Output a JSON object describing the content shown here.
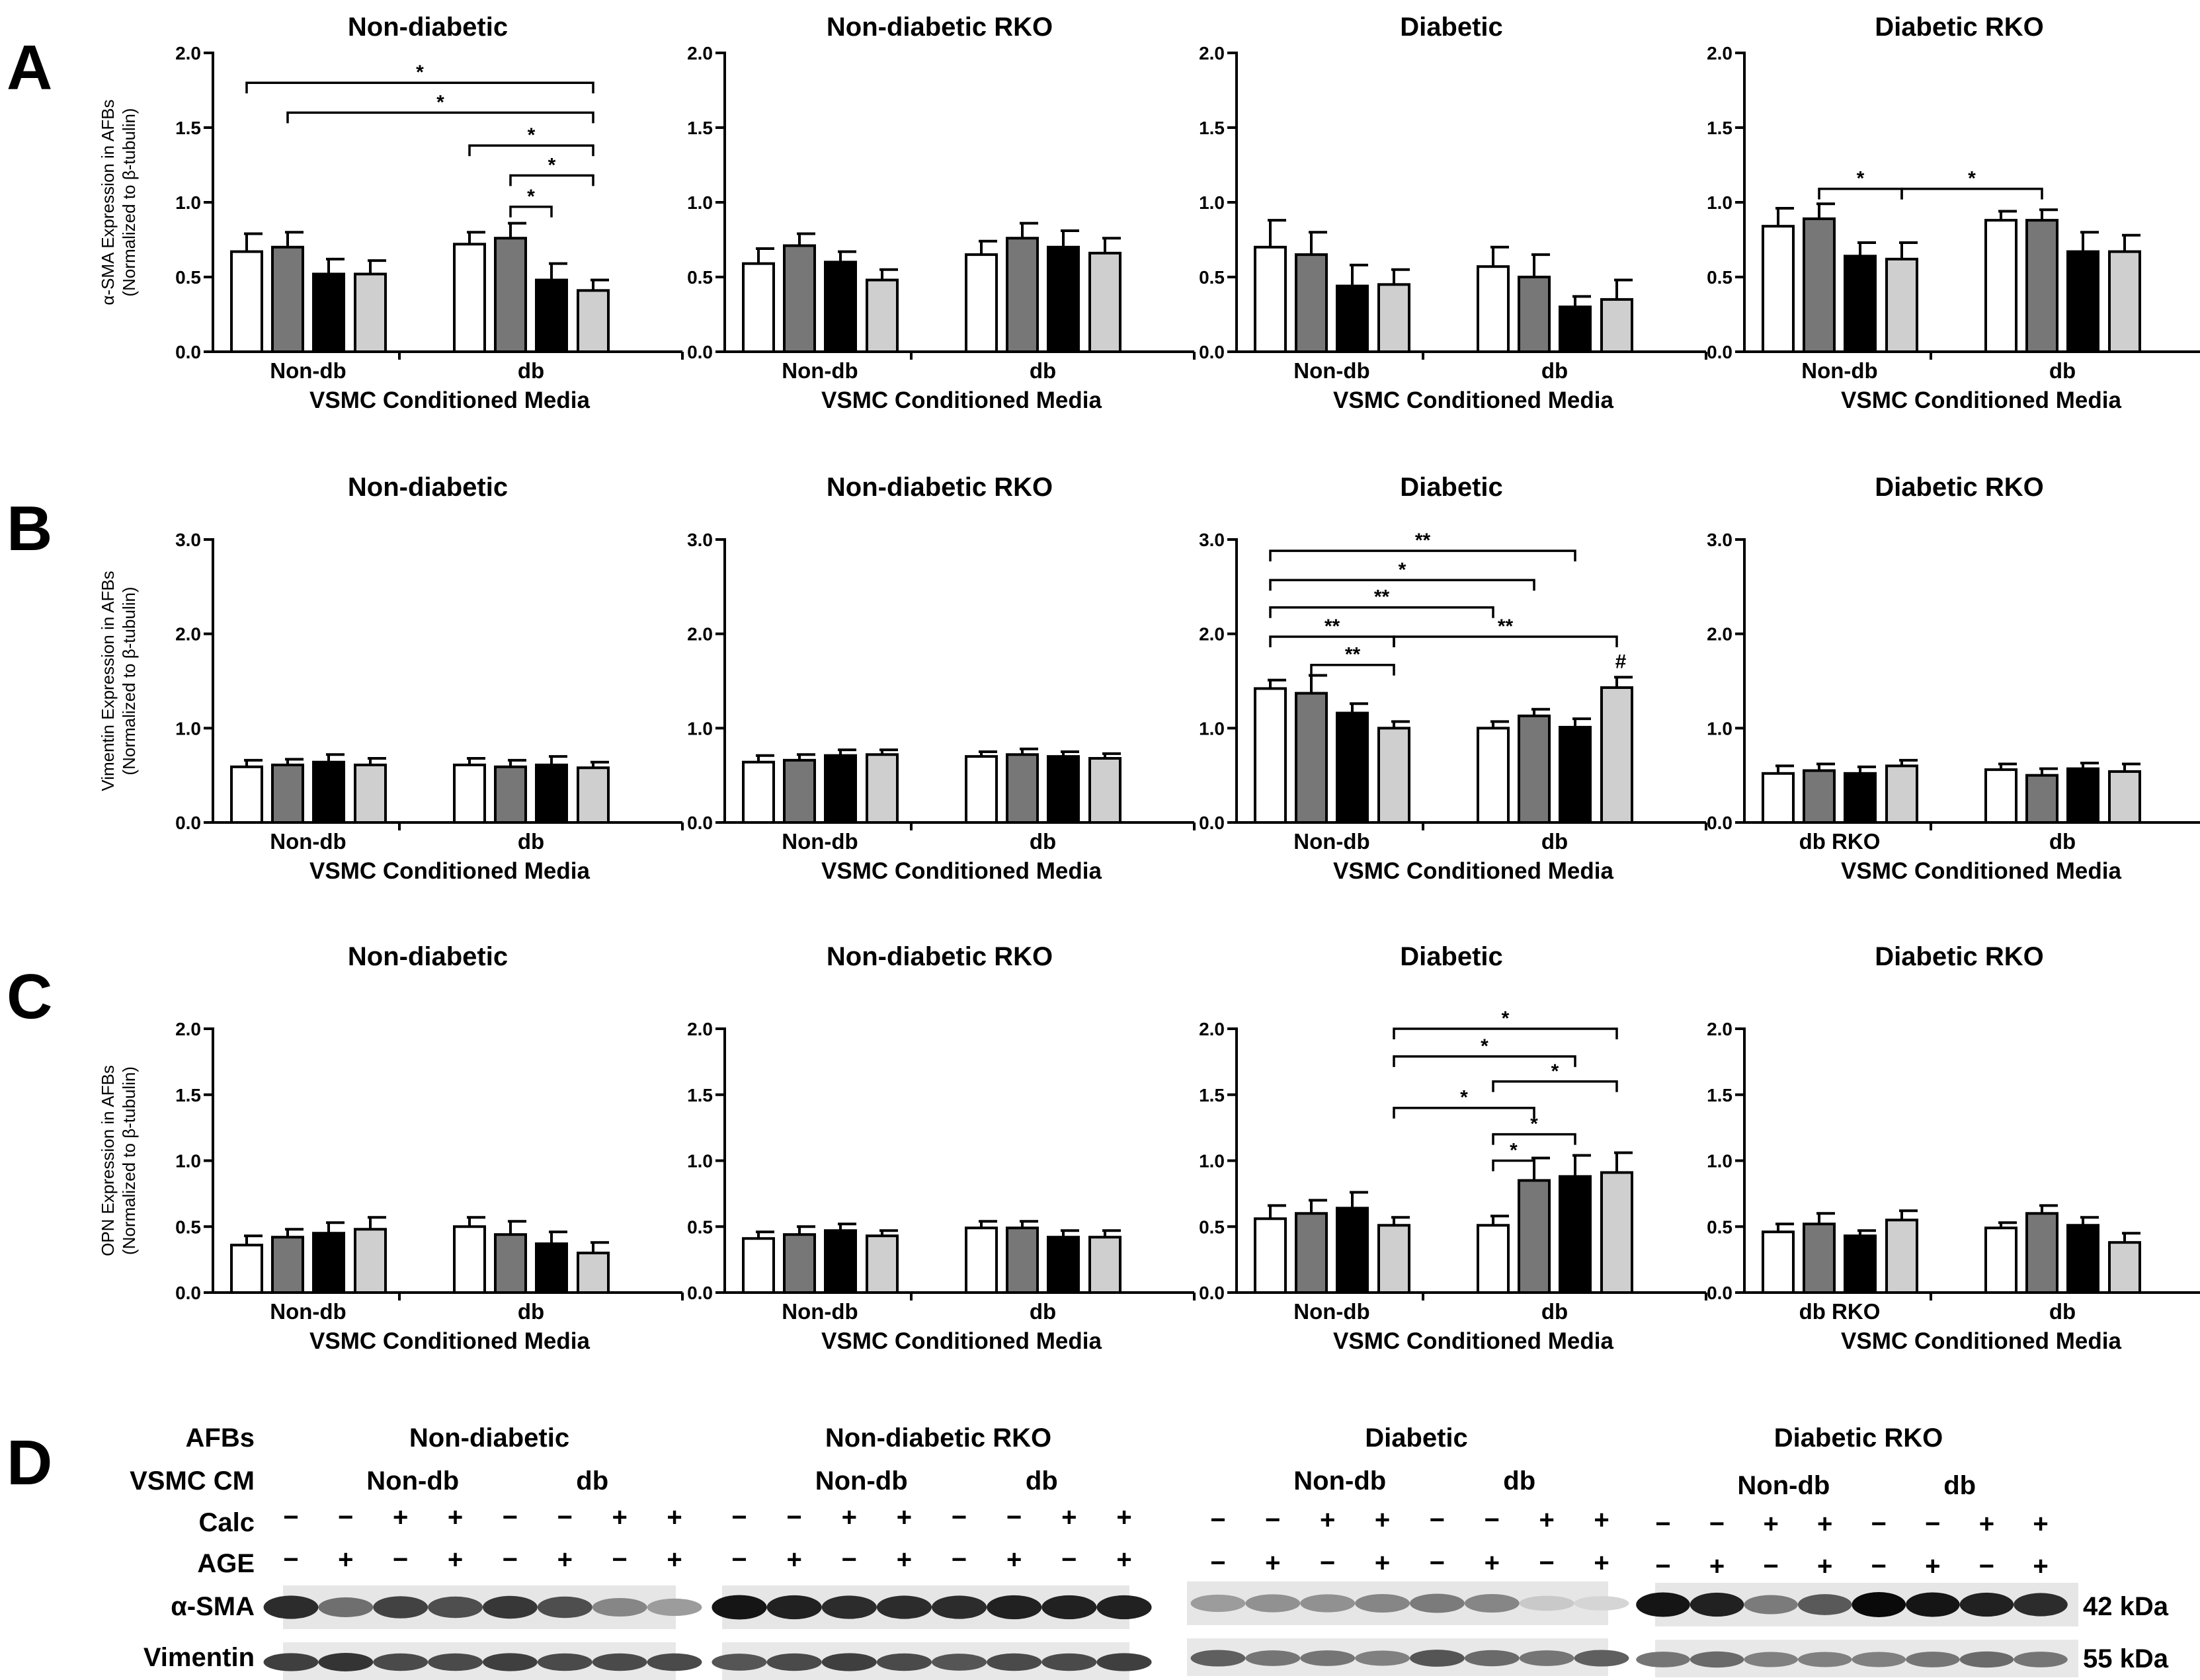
{
  "panel_labels": [
    "A",
    "B",
    "C",
    "D"
  ],
  "colors": {
    "bar_fills": [
      "#ffffff",
      "#777777",
      "#000000",
      "#cfcfcf"
    ],
    "axis": "#000000"
  },
  "chart_data": [
    {
      "row": "A",
      "type": "bar",
      "title": "Non-diabetic",
      "ylabel": [
        "α-SMA Expression in AFBs",
        "(Normalized to β-tubulin)"
      ],
      "xlabel": "VSMC Conditioned Media",
      "groups": [
        "Non-db",
        "db"
      ],
      "ylim": [
        0,
        2.0
      ],
      "yticks": [
        "0.0",
        "0.5",
        "1.0",
        "1.5",
        "2.0"
      ],
      "values": [
        [
          0.67,
          0.7,
          0.52,
          0.52
        ],
        [
          0.72,
          0.76,
          0.48,
          0.41
        ]
      ],
      "errors": [
        [
          0.12,
          0.1,
          0.1,
          0.09
        ],
        [
          0.08,
          0.1,
          0.11,
          0.07
        ]
      ],
      "significance": [
        {
          "from": 0,
          "to": 7,
          "level": 1.8,
          "label": "*"
        },
        {
          "from": 1,
          "to": 7,
          "level": 1.6,
          "label": "*"
        },
        {
          "from": 4,
          "to": 7,
          "level": 1.38,
          "label": "*"
        },
        {
          "from": 5,
          "to": 7,
          "level": 1.18,
          "label": "*"
        },
        {
          "from": 5,
          "to": 6,
          "level": 0.97,
          "label": "*"
        }
      ],
      "markers": []
    },
    {
      "row": "A",
      "type": "bar",
      "title": "Non-diabetic RKO",
      "ylabel": [],
      "xlabel": "VSMC Conditioned Media",
      "groups": [
        "Non-db",
        "db"
      ],
      "ylim": [
        0,
        2.0
      ],
      "yticks": [
        "0.0",
        "0.5",
        "1.0",
        "1.5",
        "2.0"
      ],
      "values": [
        [
          0.59,
          0.71,
          0.6,
          0.48
        ],
        [
          0.65,
          0.76,
          0.7,
          0.66
        ]
      ],
      "errors": [
        [
          0.1,
          0.08,
          0.07,
          0.07
        ],
        [
          0.09,
          0.1,
          0.11,
          0.1
        ]
      ],
      "significance": [],
      "markers": []
    },
    {
      "row": "A",
      "type": "bar",
      "title": "Diabetic",
      "ylabel": [],
      "xlabel": "VSMC Conditioned Media",
      "groups": [
        "Non-db",
        "db"
      ],
      "ylim": [
        0,
        2.0
      ],
      "yticks": [
        "0.0",
        "0.5",
        "1.0",
        "1.5",
        "2.0"
      ],
      "values": [
        [
          0.7,
          0.65,
          0.44,
          0.45
        ],
        [
          0.57,
          0.5,
          0.3,
          0.35
        ]
      ],
      "errors": [
        [
          0.18,
          0.15,
          0.14,
          0.1
        ],
        [
          0.13,
          0.15,
          0.07,
          0.13
        ]
      ],
      "significance": [],
      "markers": []
    },
    {
      "row": "A",
      "type": "bar",
      "title": "Diabetic RKO",
      "ylabel": [],
      "xlabel": "VSMC Conditioned Media",
      "groups": [
        "Non-db",
        "db"
      ],
      "ylim": [
        0,
        2.0
      ],
      "yticks": [
        "0.0",
        "0.5",
        "1.0",
        "1.5",
        "2.0"
      ],
      "values": [
        [
          0.84,
          0.89,
          0.64,
          0.62
        ],
        [
          0.88,
          0.88,
          0.67,
          0.67
        ]
      ],
      "errors": [
        [
          0.12,
          0.1,
          0.09,
          0.11
        ],
        [
          0.06,
          0.07,
          0.13,
          0.11
        ]
      ],
      "significance": [
        {
          "from": 1,
          "to": 3,
          "level": 1.09,
          "label": "*"
        },
        {
          "from": 3,
          "to": 5,
          "level": 1.09,
          "label": "*"
        }
      ],
      "markers": []
    },
    {
      "row": "B",
      "type": "bar",
      "title": "Non-diabetic",
      "ylabel": [
        "Vimentin Expression in AFBs",
        "(Normalized to β-tubulin)"
      ],
      "xlabel": "VSMC Conditioned Media",
      "groups": [
        "Non-db",
        "db"
      ],
      "ylim": [
        0,
        3.0
      ],
      "yticks": [
        "0.0",
        "1.0",
        "2.0",
        "3.0"
      ],
      "values": [
        [
          0.59,
          0.61,
          0.64,
          0.61
        ],
        [
          0.61,
          0.59,
          0.61,
          0.58
        ]
      ],
      "errors": [
        [
          0.07,
          0.06,
          0.08,
          0.07
        ],
        [
          0.07,
          0.07,
          0.09,
          0.06
        ]
      ],
      "significance": [],
      "markers": []
    },
    {
      "row": "B",
      "type": "bar",
      "title": "Non-diabetic RKO",
      "ylabel": [],
      "xlabel": "VSMC Conditioned Media",
      "groups": [
        "Non-db",
        "db"
      ],
      "ylim": [
        0,
        3.0
      ],
      "yticks": [
        "0.0",
        "1.0",
        "2.0",
        "3.0"
      ],
      "values": [
        [
          0.64,
          0.66,
          0.71,
          0.72
        ],
        [
          0.7,
          0.72,
          0.7,
          0.68
        ]
      ],
      "errors": [
        [
          0.07,
          0.06,
          0.06,
          0.05
        ],
        [
          0.05,
          0.06,
          0.05,
          0.05
        ]
      ],
      "significance": [],
      "markers": []
    },
    {
      "row": "B",
      "type": "bar",
      "title": "Diabetic",
      "ylabel": [],
      "xlabel": "VSMC Conditioned Media",
      "groups": [
        "Non-db",
        "db"
      ],
      "ylim": [
        0,
        3.0
      ],
      "yticks": [
        "0.0",
        "1.0",
        "2.0",
        "3.0"
      ],
      "values": [
        [
          1.42,
          1.37,
          1.16,
          1.0
        ],
        [
          1.0,
          1.13,
          1.01,
          1.43
        ]
      ],
      "errors": [
        [
          0.09,
          0.19,
          0.1,
          0.07
        ],
        [
          0.07,
          0.07,
          0.09,
          0.11
        ]
      ],
      "significance": [
        {
          "from": 0,
          "to": 6,
          "level": 2.88,
          "label": "**"
        },
        {
          "from": 0,
          "to": 5,
          "level": 2.57,
          "label": "*"
        },
        {
          "from": 0,
          "to": 4,
          "level": 2.28,
          "label": "**"
        },
        {
          "from": 0,
          "to": 3,
          "level": 1.97,
          "label": "**"
        },
        {
          "from": 1,
          "to": 3,
          "level": 1.67,
          "label": "**"
        },
        {
          "from": 3,
          "to": 7,
          "level": 1.97,
          "label": "**"
        }
      ],
      "markers": [
        {
          "bar": 7,
          "label": "#"
        }
      ]
    },
    {
      "row": "B",
      "type": "bar",
      "title": "Diabetic RKO",
      "ylabel": [],
      "xlabel": "VSMC Conditioned Media",
      "groups": [
        "db RKO",
        "db"
      ],
      "ylim": [
        0,
        3.0
      ],
      "yticks": [
        "0.0",
        "1.0",
        "2.0",
        "3.0"
      ],
      "values": [
        [
          0.52,
          0.55,
          0.52,
          0.6
        ],
        [
          0.56,
          0.5,
          0.57,
          0.54
        ]
      ],
      "errors": [
        [
          0.08,
          0.07,
          0.07,
          0.06
        ],
        [
          0.06,
          0.07,
          0.06,
          0.08
        ]
      ],
      "significance": [],
      "markers": []
    },
    {
      "row": "C",
      "type": "bar",
      "title": "Non-diabetic",
      "ylabel": [
        "OPN Expression in AFBs",
        "(Normalized to β-tubulin)"
      ],
      "xlabel": "VSMC Conditioned Media",
      "groups": [
        "Non-db",
        "db"
      ],
      "ylim": [
        0,
        2.0
      ],
      "yticks": [
        "0.0",
        "0.5",
        "1.0",
        "1.5",
        "2.0"
      ],
      "values": [
        [
          0.36,
          0.42,
          0.45,
          0.48
        ],
        [
          0.5,
          0.44,
          0.37,
          0.3
        ]
      ],
      "errors": [
        [
          0.07,
          0.06,
          0.08,
          0.09
        ],
        [
          0.07,
          0.1,
          0.09,
          0.08
        ]
      ],
      "significance": [],
      "markers": []
    },
    {
      "row": "C",
      "type": "bar",
      "title": "Non-diabetic RKO",
      "ylabel": [],
      "xlabel": "VSMC Conditioned Media",
      "groups": [
        "Non-db",
        "db"
      ],
      "ylim": [
        0,
        2.0
      ],
      "yticks": [
        "0.0",
        "0.5",
        "1.0",
        "1.5",
        "2.0"
      ],
      "values": [
        [
          0.41,
          0.44,
          0.47,
          0.43
        ],
        [
          0.49,
          0.49,
          0.42,
          0.42
        ]
      ],
      "errors": [
        [
          0.05,
          0.06,
          0.05,
          0.04
        ],
        [
          0.05,
          0.05,
          0.05,
          0.05
        ]
      ],
      "significance": [],
      "markers": []
    },
    {
      "row": "C",
      "type": "bar",
      "title": "Diabetic",
      "ylabel": [],
      "xlabel": "VSMC Conditioned Media",
      "groups": [
        "Non-db",
        "db"
      ],
      "ylim": [
        0,
        2.0
      ],
      "yticks": [
        "0.0",
        "0.5",
        "1.0",
        "1.5",
        "2.0"
      ],
      "values": [
        [
          0.56,
          0.6,
          0.64,
          0.51
        ],
        [
          0.51,
          0.85,
          0.88,
          0.91
        ]
      ],
      "errors": [
        [
          0.1,
          0.1,
          0.12,
          0.06
        ],
        [
          0.07,
          0.17,
          0.16,
          0.15
        ]
      ],
      "significance": [
        {
          "from": 3,
          "to": 7,
          "level": 2.0,
          "label": "*"
        },
        {
          "from": 3,
          "to": 6,
          "level": 1.79,
          "label": "*"
        },
        {
          "from": 4,
          "to": 7,
          "level": 1.6,
          "label": "*"
        },
        {
          "from": 3,
          "to": 5,
          "level": 1.4,
          "label": "*"
        },
        {
          "from": 4,
          "to": 6,
          "level": 1.2,
          "label": "*"
        },
        {
          "from": 4,
          "to": 5,
          "level": 1.0,
          "label": "*"
        }
      ],
      "markers": []
    },
    {
      "row": "C",
      "type": "bar",
      "title": "Diabetic RKO",
      "ylabel": [],
      "xlabel": "VSMC Conditioned Media",
      "groups": [
        "db RKO",
        "db"
      ],
      "ylim": [
        0,
        2.0
      ],
      "yticks": [
        "0.0",
        "0.5",
        "1.0",
        "1.5",
        "2.0"
      ],
      "values": [
        [
          0.46,
          0.52,
          0.43,
          0.55
        ],
        [
          0.49,
          0.6,
          0.51,
          0.38
        ]
      ],
      "errors": [
        [
          0.06,
          0.08,
          0.04,
          0.07
        ],
        [
          0.04,
          0.06,
          0.06,
          0.07
        ]
      ],
      "significance": [],
      "markers": []
    }
  ],
  "blot": {
    "row_labels": {
      "afbs": "AFBs",
      "vsmc": "VSMC CM",
      "calc": "Calc",
      "age": "AGE",
      "sma": "α-SMA",
      "vimentin": "Vimentin"
    },
    "blocks": [
      {
        "title": "Non-diabetic",
        "groups": [
          "Non-db",
          "db"
        ]
      },
      {
        "title": "Non-diabetic RKO",
        "groups": [
          "Non-db",
          "db"
        ]
      },
      {
        "title": "Diabetic",
        "groups": [
          "Non-db",
          "db"
        ]
      },
      {
        "title": "Diabetic RKO",
        "groups": [
          "Non-db",
          "db"
        ]
      }
    ],
    "calc": [
      "−",
      "−",
      "+",
      "+",
      "−",
      "−",
      "+",
      "+"
    ],
    "age": [
      "−",
      "+",
      "−",
      "+",
      "−",
      "+",
      "−",
      "+"
    ],
    "sizes": [
      "42 kDa",
      "55 kDa"
    ],
    "sma_intensity": [
      [
        0.85,
        0.55,
        0.75,
        0.7,
        0.8,
        0.7,
        0.45,
        0.35
      ],
      [
        0.95,
        0.9,
        0.85,
        0.85,
        0.85,
        0.9,
        0.9,
        0.9
      ],
      [
        0.35,
        0.4,
        0.4,
        0.45,
        0.5,
        0.45,
        0.15,
        0.1
      ],
      [
        0.95,
        0.9,
        0.5,
        0.65,
        1.0,
        0.95,
        0.9,
        0.85
      ]
    ],
    "vim_intensity": [
      [
        0.8,
        0.85,
        0.75,
        0.75,
        0.8,
        0.75,
        0.75,
        0.75
      ],
      [
        0.7,
        0.75,
        0.8,
        0.75,
        0.7,
        0.75,
        0.75,
        0.8
      ],
      [
        0.65,
        0.55,
        0.55,
        0.5,
        0.7,
        0.6,
        0.55,
        0.65
      ],
      [
        0.55,
        0.6,
        0.5,
        0.5,
        0.5,
        0.55,
        0.6,
        0.55
      ]
    ]
  }
}
